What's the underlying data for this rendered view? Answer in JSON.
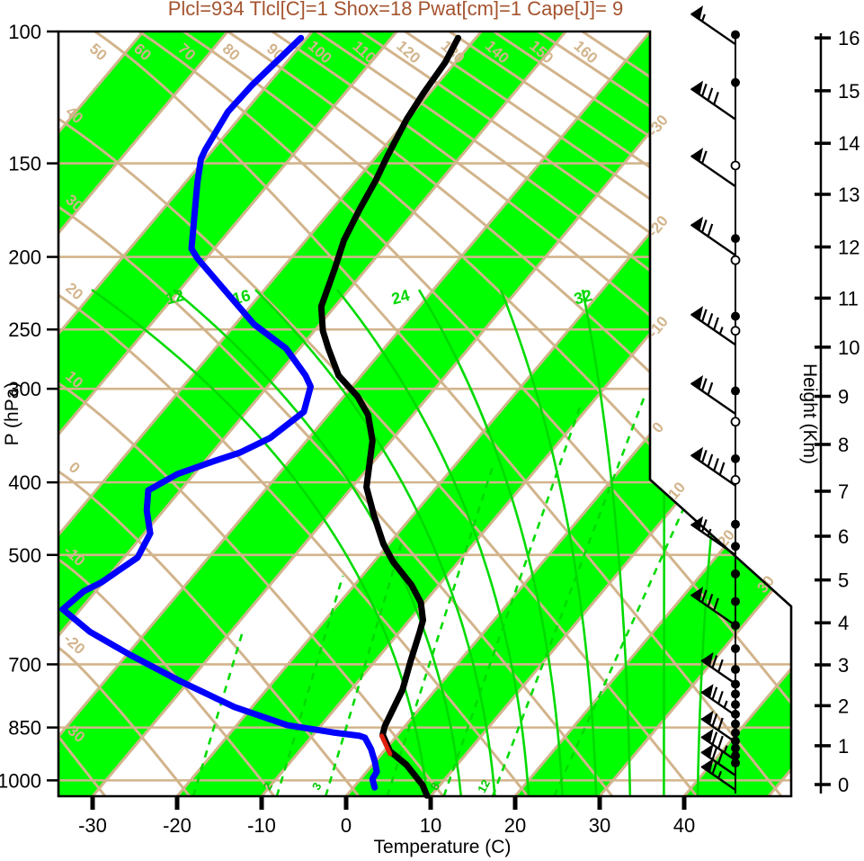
{
  "title": {
    "text": "Plcl=934 Tlcl[C]=1 Shox=18 Pwat[cm]=1 Cape[J]= 9",
    "color": "#A5542F"
  },
  "axes": {
    "x": {
      "label": "Temperature (C)",
      "ticks": [
        -30,
        -20,
        -10,
        0,
        10,
        20,
        30,
        40
      ]
    },
    "pressure": {
      "label": "P (hPa)",
      "ticks": [
        100,
        150,
        200,
        250,
        300,
        400,
        500,
        700,
        850,
        1000
      ]
    },
    "height": {
      "label": "Height (Km)",
      "ticks_km": [
        0,
        1,
        2,
        3,
        4,
        5,
        6,
        7,
        8,
        9,
        10,
        11,
        12,
        13,
        14,
        15,
        16
      ],
      "ticks_p": [
        1013,
        899,
        795,
        701,
        616,
        540,
        472,
        411,
        356,
        307,
        264,
        227,
        194,
        165,
        141,
        120,
        102
      ]
    }
  },
  "colors": {
    "band_green": "#00FF00",
    "line_green": "#00DB00",
    "tan": "#D2B48C",
    "temperature": "#000000",
    "dewpoint": "#0000FF",
    "parcel": "#E02010"
  },
  "chart_data": {
    "type": "skewT-logP-sounding",
    "title": "Plcl=934 Tlcl[C]=1 Shox=18 Pwat[cm]=1 Cape[J]= 9",
    "parameters": {
      "Plcl_hPa": 934,
      "Tlcl_C": 1,
      "Shox": 18,
      "Pwat_cm": 1,
      "Cape_J": 9
    },
    "pressure_range_hPa": [
      100,
      1050
    ],
    "temperature_axis_C": [
      -30,
      40
    ],
    "temperature_profile_p_T": [
      [
        102,
        -62.1
      ],
      [
        110,
        -61.2
      ],
      [
        121,
        -60.7
      ],
      [
        131,
        -60.1
      ],
      [
        147,
        -58.7
      ],
      [
        158,
        -57.7
      ],
      [
        173,
        -56.7
      ],
      [
        190,
        -55.5
      ],
      [
        208,
        -53.7
      ],
      [
        233,
        -51.6
      ],
      [
        251,
        -49.0
      ],
      [
        265,
        -46.6
      ],
      [
        288,
        -42.7
      ],
      [
        307,
        -38.4
      ],
      [
        325,
        -35.3
      ],
      [
        352,
        -32.2
      ],
      [
        406,
        -28.3
      ],
      [
        442,
        -24.7
      ],
      [
        484,
        -20.6
      ],
      [
        511,
        -17.7
      ],
      [
        548,
        -13.3
      ],
      [
        579,
        -10.4
      ],
      [
        611,
        -8.4
      ],
      [
        634,
        -7.6
      ],
      [
        693,
        -5.8
      ],
      [
        757,
        -3.9
      ],
      [
        846,
        -2.4
      ],
      [
        869,
        -1.8
      ],
      [
        914,
        0.7
      ],
      [
        953,
        4.0
      ],
      [
        1014,
        7.9
      ],
      [
        1048,
        9.5
      ]
    ],
    "dewpoint_profile_p_T": [
      [
        102,
        -80.7
      ],
      [
        118,
        -81.8
      ],
      [
        128,
        -82.0
      ],
      [
        144,
        -80.9
      ],
      [
        148,
        -80.5
      ],
      [
        159,
        -78.6
      ],
      [
        182,
        -74.7
      ],
      [
        195,
        -72.7
      ],
      [
        201,
        -71.0
      ],
      [
        219,
        -65.4
      ],
      [
        246,
        -57.8
      ],
      [
        265,
        -51.6
      ],
      [
        288,
        -46.6
      ],
      [
        298,
        -44.9
      ],
      [
        322,
        -43.2
      ],
      [
        349,
        -44.6
      ],
      [
        365,
        -46.7
      ],
      [
        375,
        -49.0
      ],
      [
        390,
        -52.0
      ],
      [
        410,
        -53.8
      ],
      [
        436,
        -52.0
      ],
      [
        468,
        -49.3
      ],
      [
        504,
        -48.4
      ],
      [
        521,
        -49.2
      ],
      [
        544,
        -50.2
      ],
      [
        559,
        -51.4
      ],
      [
        591,
        -52.1
      ],
      [
        633,
        -46.7
      ],
      [
        680,
        -39.6
      ],
      [
        737,
        -31.1
      ],
      [
        798,
        -22.1
      ],
      [
        844,
        -14.0
      ],
      [
        863,
        -7.9
      ],
      [
        872,
        -4.4
      ],
      [
        877,
        -3.6
      ],
      [
        909,
        -1.7
      ],
      [
        945,
        0.0
      ],
      [
        974,
        1.2
      ],
      [
        996,
        1.4
      ],
      [
        1022,
        2.5
      ]
    ],
    "parcel_segment_p_T": [
      [
        872,
        -1.8
      ],
      [
        922,
        1.0
      ]
    ],
    "wind_profile": [
      {
        "p": 104,
        "kt": 55
      },
      {
        "p": 131,
        "kt": 80
      },
      {
        "p": 161,
        "kt": 60
      },
      {
        "p": 199,
        "kt": 70
      },
      {
        "p": 262,
        "kt": 85
      },
      {
        "p": 324,
        "kt": 70
      },
      {
        "p": 404,
        "kt": 90
      },
      {
        "p": 500,
        "kt": 65
      },
      {
        "p": 621,
        "kt": 80
      },
      {
        "p": 743,
        "kt": 70
      },
      {
        "p": 819,
        "kt": 75
      },
      {
        "p": 889,
        "kt": 70
      },
      {
        "p": 940,
        "kt": 75
      },
      {
        "p": 985,
        "kt": 70
      },
      {
        "p": 1030,
        "kt": 65
      }
    ],
    "station_markers": [
      {
        "p": 101,
        "open": false
      },
      {
        "p": 117,
        "open": false
      },
      {
        "p": 151,
        "open": true
      },
      {
        "p": 189,
        "open": false
      },
      {
        "p": 202,
        "open": true
      },
      {
        "p": 240,
        "open": false
      },
      {
        "p": 251,
        "open": true
      },
      {
        "p": 302,
        "open": false
      },
      {
        "p": 332,
        "open": true
      },
      {
        "p": 372,
        "open": false
      },
      {
        "p": 397,
        "open": true
      },
      {
        "p": 455,
        "open": false
      },
      {
        "p": 487,
        "open": false
      },
      {
        "p": 530,
        "open": false
      },
      {
        "p": 577,
        "open": false
      },
      {
        "p": 621,
        "open": false
      },
      {
        "p": 667,
        "open": false
      },
      {
        "p": 711,
        "open": false
      },
      {
        "p": 744,
        "open": false
      },
      {
        "p": 767,
        "open": false
      },
      {
        "p": 792,
        "open": false
      },
      {
        "p": 816,
        "open": false
      },
      {
        "p": 841,
        "open": false
      },
      {
        "p": 864,
        "open": false
      },
      {
        "p": 886,
        "open": false
      },
      {
        "p": 906,
        "open": false
      },
      {
        "p": 927,
        "open": false
      },
      {
        "p": 948,
        "open": false
      }
    ],
    "background": {
      "isotherms_C": {
        "min": -130,
        "max": 50,
        "step": 10,
        "right_edge_labels": [
          -30,
          -20,
          -10,
          0,
          10,
          20,
          30
        ]
      },
      "dry_adiabats_C": {
        "min": -30,
        "max": 160,
        "step": 10,
        "top_labels": [
          50,
          60,
          70,
          80,
          90,
          100,
          110,
          120,
          130,
          140,
          150,
          160
        ],
        "left_labels": [
          40,
          30,
          20,
          10,
          0,
          -10,
          -20,
          -30
        ]
      },
      "moist_adiabats_C": {
        "values": [
          8,
          12,
          16,
          20,
          24,
          28,
          32,
          36,
          40
        ],
        "labels": [
          12,
          16,
          24,
          32
        ]
      },
      "mixing_ratio_g_kg": {
        "values": [
          1,
          2,
          3,
          5,
          8,
          12,
          20
        ],
        "labels": [
          2,
          3,
          8,
          12
        ]
      },
      "pressure_lines_hPa": [
        150,
        200,
        250,
        300,
        400,
        500,
        700,
        850,
        1000
      ]
    }
  }
}
